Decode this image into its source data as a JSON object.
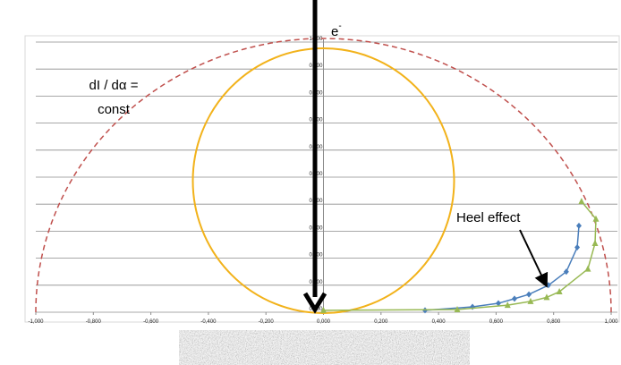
{
  "chart_data": {
    "type": "scatter",
    "xlim": [
      -1,
      1
    ],
    "ylim": [
      0,
      1
    ],
    "grid": true,
    "xticks": [
      {
        "value": -1,
        "label": "-1,000"
      },
      {
        "value": -0.8,
        "label": "-0,800"
      },
      {
        "value": -0.6,
        "label": "-0,600"
      },
      {
        "value": -0.4,
        "label": "-0,400"
      },
      {
        "value": -0.2,
        "label": "-0,200"
      },
      {
        "value": 0,
        "label": "0,000"
      },
      {
        "value": 0.2,
        "label": "0,200"
      },
      {
        "value": 0.4,
        "label": "0,400"
      },
      {
        "value": 0.6,
        "label": "0,600"
      },
      {
        "value": 0.8,
        "label": "0,800"
      },
      {
        "value": 1,
        "label": "1,000"
      }
    ],
    "yticks": [
      {
        "value": 0,
        "label": "0,000"
      },
      {
        "value": 0.1,
        "label": "0,100"
      },
      {
        "value": 0.2,
        "label": "0,200"
      },
      {
        "value": 0.3,
        "label": "0,300"
      },
      {
        "value": 0.4,
        "label": "0,400"
      },
      {
        "value": 0.5,
        "label": "0,500"
      },
      {
        "value": 0.6,
        "label": "0,600"
      },
      {
        "value": 0.7,
        "label": "0,700"
      },
      {
        "value": 0.8,
        "label": "0,800"
      },
      {
        "value": 0.9,
        "label": "0,900"
      },
      {
        "value": 1,
        "label": "1,000"
      }
    ],
    "series": [
      {
        "color": "#4a7ebb",
        "marker": "diamond",
        "x": [
          0.353,
          0.518,
          0.608,
          0.664,
          0.714,
          0.782,
          0.844,
          0.882,
          0.888
        ],
        "values": [
          0.007,
          0.02,
          0.033,
          0.05,
          0.066,
          0.1,
          0.15,
          0.24,
          0.32
        ]
      },
      {
        "color": "#98b954",
        "marker": "triangle",
        "x": [
          0,
          0.465,
          0.64,
          0.72,
          0.776,
          0.82,
          0.919,
          0.944,
          0.947,
          0.897
        ],
        "values": [
          0.007,
          0.01,
          0.026,
          0.04,
          0.055,
          0.076,
          0.16,
          0.255,
          0.345,
          0.41
        ]
      }
    ],
    "annotations": {
      "electron": {
        "text": "e",
        "sup": "-"
      },
      "formula": [
        "dI / dα =",
        "const"
      ],
      "heel": "Heel effect"
    }
  }
}
